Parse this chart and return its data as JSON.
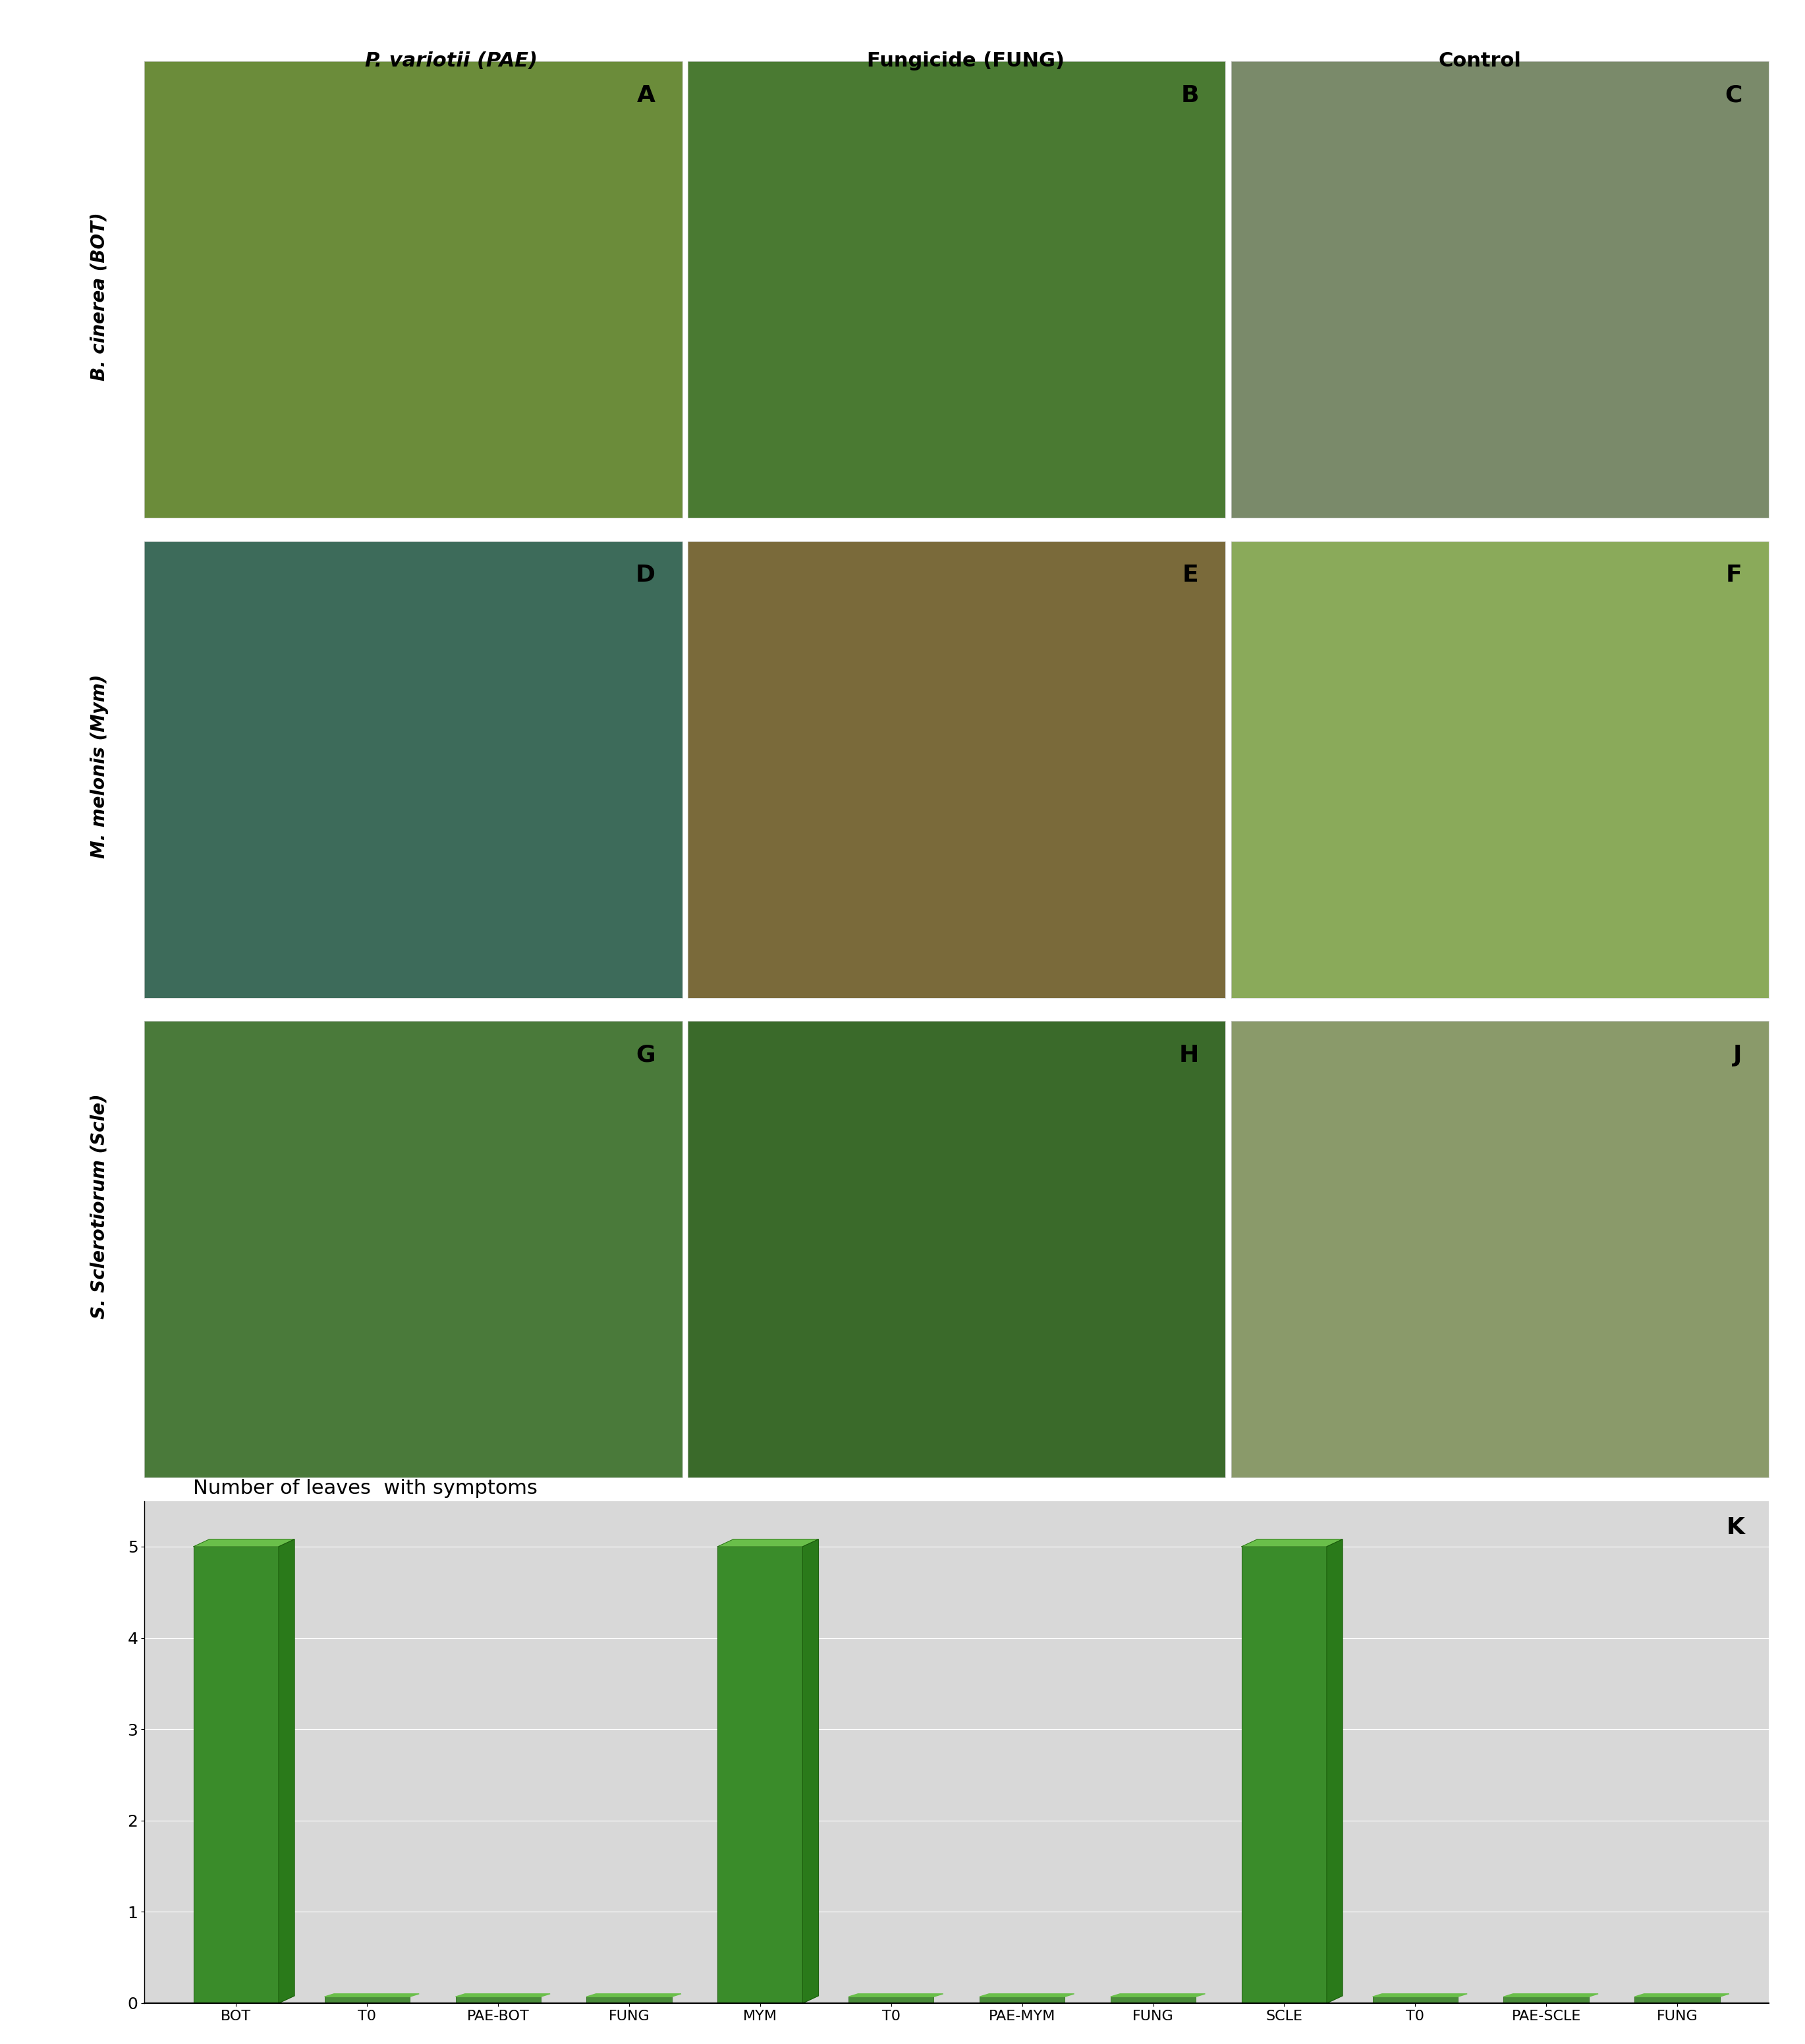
{
  "col_labels": [
    "P. variotii (PAE)",
    "Fungicide (FUNG)",
    "Control"
  ],
  "col_labels_italic": [
    true,
    false,
    false
  ],
  "row_labels": [
    "B. cinerea (BOT)",
    "M. melonis (Mym)",
    "S. Sclerotiorum (Scle)"
  ],
  "panel_letters": [
    [
      "A",
      "B",
      "C"
    ],
    [
      "D",
      "E",
      "F"
    ],
    [
      "G",
      "H",
      "J"
    ]
  ],
  "panel_K": "K",
  "photo_colors": [
    [
      "#6b8c3a",
      "#4a7a32",
      "#7a8a6a"
    ],
    [
      "#3d6b5a",
      "#7a6a3a",
      "#8aaa5a"
    ],
    [
      "#4a7a3a",
      "#3a6a2a",
      "#8a9a6a"
    ]
  ],
  "chart_title": "Number of leaves  with symptoms",
  "bar_categories": [
    "BOT",
    "T0",
    "PAE-BOT",
    "FUNG",
    "MYM",
    "T0",
    "PAE-MYM",
    "FUNG",
    "SCLE",
    "T0",
    "PAE-SCLE",
    "FUNG"
  ],
  "bar_values": [
    5,
    0,
    0,
    0,
    5,
    0,
    0,
    0,
    5,
    0,
    0,
    0
  ],
  "bar_color_face": "#3a8c2a",
  "bar_color_edge": "#2a6a1a",
  "bar_color_dark": "#1a5a0a",
  "zero_bar_color": "#4a8c3a",
  "ylim": [
    0,
    5.5
  ],
  "yticks": [
    0,
    1,
    2,
    3,
    4,
    5
  ],
  "background_color": "#e8e8e8",
  "chart_bg": "#d8d8d8",
  "figure_bg": "#ffffff",
  "title_fontsize": 22,
  "label_fontsize": 18,
  "tick_fontsize": 16,
  "panel_letter_fontsize": 26,
  "row_label_fontsize": 20,
  "col_label_fontsize": 22
}
